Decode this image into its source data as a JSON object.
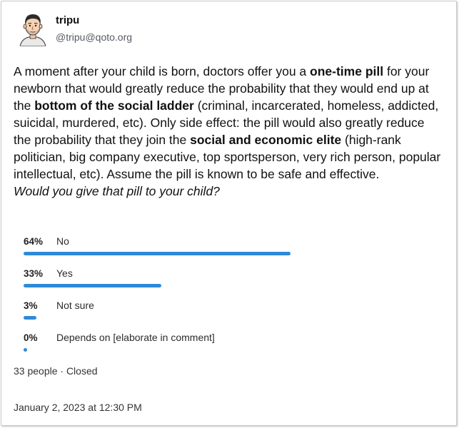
{
  "author": {
    "display_name": "tripu",
    "handle": "@tripu@qoto.org"
  },
  "post": {
    "segments": [
      {
        "text": "A moment after your child is born, doctors offer you a ",
        "bold": false
      },
      {
        "text": "one-time pill",
        "bold": true
      },
      {
        "text": " for your newborn that would greatly reduce the probability that they would end up at the ",
        "bold": false
      },
      {
        "text": "bottom of the social ladder",
        "bold": true
      },
      {
        "text": " (criminal, incarcerated, homeless, addicted, suicidal, murdered, etc). Only side effect: the pill would also greatly reduce the probability that they join the ",
        "bold": false
      },
      {
        "text": "social and economic elite",
        "bold": true
      },
      {
        "text": " (high-rank politician, big company executive, top sportsperson, very rich person, popular intellectual, etc). Assume the pill is known to be safe and effective.",
        "bold": false
      }
    ],
    "question": "Would you give that pill to your child?"
  },
  "poll": {
    "bar_color": "#2d8ad8",
    "options": [
      {
        "percent_label": "64%",
        "label": "No",
        "share": 0.64
      },
      {
        "percent_label": "33%",
        "label": "Yes",
        "share": 0.33
      },
      {
        "percent_label": "3%",
        "label": "Not sure",
        "share": 0.03
      },
      {
        "percent_label": "0%",
        "label": "Depends on [elaborate in comment]",
        "share": 0.0
      }
    ],
    "meta": "33 people · Closed"
  },
  "timestamp": "January 2, 2023 at 12:30 PM"
}
